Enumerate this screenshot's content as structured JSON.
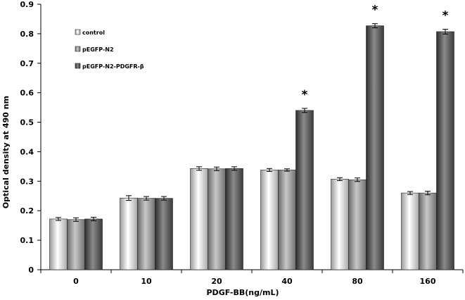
{
  "chart_data": {
    "type": "bar",
    "title": "",
    "xlabel": "PDGF-BB(ng/mL)",
    "ylabel": "Optical density at 490 nm",
    "ylim": [
      0,
      0.9
    ],
    "yticks": [
      "0",
      "0.1",
      "0.2",
      "0.3",
      "0.4",
      "0.5",
      "0.6",
      "0.7",
      "0.8",
      "0.9"
    ],
    "categories": [
      "0",
      "10",
      "20",
      "40",
      "80",
      "160"
    ],
    "series": [
      {
        "name": "control",
        "values": [
          0.172,
          0.243,
          0.343,
          0.338,
          0.307,
          0.26
        ],
        "errors": [
          0.005,
          0.008,
          0.006,
          0.005,
          0.005,
          0.005
        ]
      },
      {
        "name": "pEGFP-N2",
        "values": [
          0.17,
          0.242,
          0.342,
          0.338,
          0.305,
          0.26
        ],
        "errors": [
          0.006,
          0.006,
          0.006,
          0.004,
          0.006,
          0.006
        ]
      },
      {
        "name": "pEGFP-N2-PDGFR-β",
        "values": [
          0.172,
          0.242,
          0.343,
          0.54,
          0.827,
          0.807
        ],
        "errors": [
          0.006,
          0.006,
          0.006,
          0.007,
          0.007,
          0.008
        ]
      }
    ],
    "annotations": [
      {
        "category": "40",
        "series": 2,
        "text": "*"
      },
      {
        "category": "80",
        "series": 2,
        "text": "*"
      },
      {
        "category": "160",
        "series": 2,
        "text": "*"
      }
    ],
    "legend_position": "top-left",
    "grid": false
  }
}
